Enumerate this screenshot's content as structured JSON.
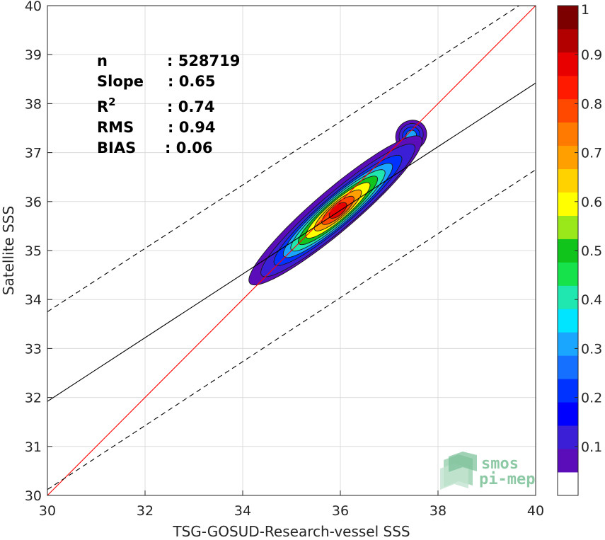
{
  "chart_data": {
    "type": "heatmap",
    "subtype": "density-contour scatter comparison",
    "xlabel": "TSG-GOSUD-Research-vessel SSS",
    "ylabel": "Satellite SSS",
    "xlim": [
      30,
      40
    ],
    "ylim": [
      30,
      40
    ],
    "xticks": [
      "30",
      "32",
      "34",
      "36",
      "38",
      "40"
    ],
    "yticks": [
      "30",
      "31",
      "32",
      "33",
      "34",
      "35",
      "36",
      "37",
      "38",
      "39",
      "40"
    ],
    "grid": true,
    "stats": [
      {
        "label": "n",
        "value": ": 528719"
      },
      {
        "label": "Slope",
        "value": ": 0.65"
      },
      {
        "label": "R",
        "sup": "2",
        "value": ": 0.74"
      },
      {
        "label": "RMS",
        "value": ": 0.94"
      },
      {
        "label": "BIAS",
        "value": ": 0.06"
      }
    ],
    "lines": [
      {
        "kind": "identity",
        "color": "#ff0000",
        "slope": 1.0,
        "intercept": 0.0
      },
      {
        "kind": "regression",
        "color": "#000000",
        "x": [
          30,
          40
        ],
        "y": [
          31.92,
          38.42
        ]
      },
      {
        "kind": "upper-envelope",
        "color": "#000000",
        "dash": true,
        "x": [
          30,
          40
        ],
        "y": [
          33.75,
          40.22
        ]
      },
      {
        "kind": "lower-envelope",
        "color": "#000000",
        "dash": true,
        "x": [
          30,
          40
        ],
        "y": [
          30.12,
          36.65
        ]
      }
    ],
    "density": {
      "center": [
        35.95,
        35.82
      ],
      "major_axis_slope": 0.85,
      "levels": [
        0.05,
        0.1,
        0.2,
        0.3,
        0.4,
        0.5,
        0.6,
        0.7,
        0.8,
        0.9
      ],
      "level_semi_axes": [
        [
          2.3,
          0.42
        ],
        [
          2.05,
          0.36
        ],
        [
          1.7,
          0.31
        ],
        [
          1.45,
          0.28
        ],
        [
          1.25,
          0.25
        ],
        [
          1.05,
          0.22
        ],
        [
          0.85,
          0.19
        ],
        [
          0.62,
          0.16
        ],
        [
          0.42,
          0.13
        ],
        [
          0.22,
          0.1
        ]
      ],
      "secondary_peak": {
        "center": [
          37.45,
          37.35
        ],
        "semi_axes": [
          0.33,
          0.3
        ],
        "levels": [
          0.05,
          0.1,
          0.2,
          0.3
        ]
      }
    },
    "colorbar": {
      "range": [
        0,
        1
      ],
      "ticks": [
        "0.1",
        "0.2",
        "0.3",
        "0.4",
        "0.5",
        "0.6",
        "0.7",
        "0.8",
        "0.9",
        "1"
      ],
      "colors": [
        "#ffffff",
        "#5a0db8",
        "#3b1fd6",
        "#0000ff",
        "#0033ff",
        "#1670ff",
        "#1aa6ff",
        "#00e5ff",
        "#20e6b0",
        "#16e24b",
        "#11c41b",
        "#9ae81a",
        "#ffff00",
        "#ffd200",
        "#ffa000",
        "#ff7a00",
        "#ff4800",
        "#ff1a00",
        "#e80000",
        "#b20000",
        "#7d0000"
      ]
    }
  },
  "logo": {
    "line1": "smos",
    "line2": "pi-mep"
  }
}
